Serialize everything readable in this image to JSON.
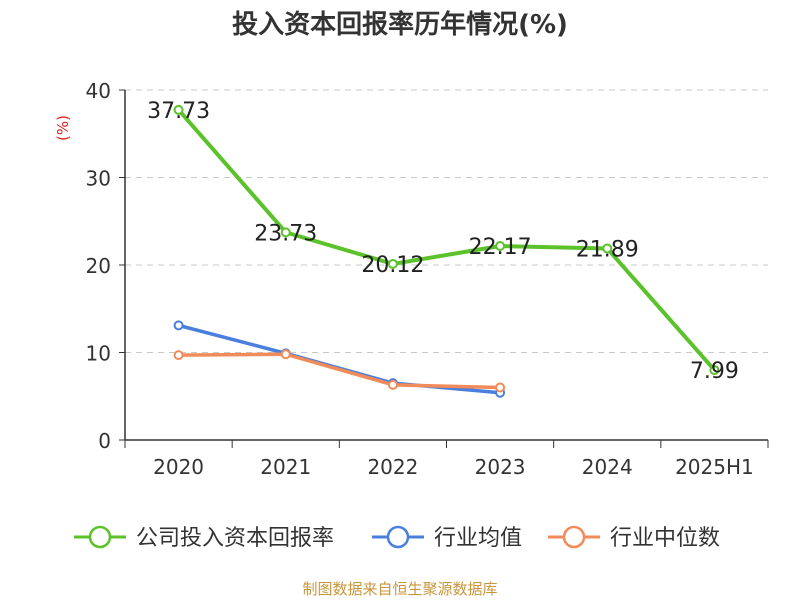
{
  "chart_data": {
    "type": "line",
    "title": "投入资本回报率历年情况(%)",
    "ylabel": "(%)",
    "categories": [
      "2020",
      "2021",
      "2022",
      "2023",
      "2024",
      "2025H1"
    ],
    "y_ticks": [
      "0",
      "10",
      "20",
      "30",
      "40"
    ],
    "ylim": [
      0,
      40
    ],
    "grid": "horizontal dashed",
    "legend_position": "bottom",
    "series": [
      {
        "name": "公司投入资本回报率",
        "color": "#5cc22b",
        "values": [
          37.73,
          23.73,
          20.12,
          22.17,
          21.89,
          7.99
        ],
        "labels": [
          "37.73",
          "23.73",
          "20.12",
          "22.17",
          "21.89",
          "7.99"
        ]
      },
      {
        "name": "行业均值",
        "color": "#4a7fde",
        "values": [
          13.1,
          9.9,
          6.5,
          5.4,
          null,
          null
        ]
      },
      {
        "name": "行业中位数",
        "color": "#f28b5a",
        "values": [
          9.7,
          9.8,
          6.3,
          6.0,
          null,
          null
        ]
      }
    ]
  },
  "source": "制图数据来自恒生聚源数据库"
}
